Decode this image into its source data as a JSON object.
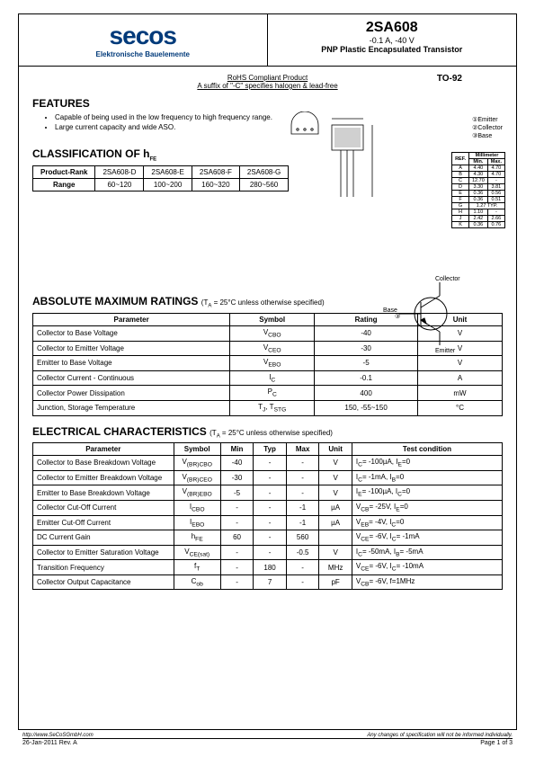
{
  "header": {
    "logo_text": "secos",
    "logo_subtitle": "Elektronische Bauelemente",
    "part_number": "2SA608",
    "rating_line": "-0.1 A, -40 V",
    "description": "PNP Plastic Encapsulated Transistor"
  },
  "rohs": {
    "line1": "RoHS Compliant Product",
    "line2": "A suffix of \"-C\" specifies halogen & lead-free"
  },
  "package_type": "TO-92",
  "features": {
    "title": "FEATURES",
    "items": [
      "Capable of being used in the low frequency to high frequency range.",
      "Large current capacity and wide ASO."
    ]
  },
  "pin_legend": {
    "e": "①Emitter",
    "c": "②Collector",
    "b": "③Base"
  },
  "classification": {
    "title": "CLASSIFICATION OF h",
    "title_sub": "FE",
    "header_label": "Product-Rank",
    "row_label": "Range",
    "cols": [
      "2SA608-D",
      "2SA608-E",
      "2SA608-F",
      "2SA608-G"
    ],
    "ranges": [
      "60~120",
      "100~200",
      "160~320",
      "280~560"
    ]
  },
  "dim_table": {
    "header": [
      "REF.",
      "Min.",
      "Max."
    ],
    "unit_header": "Millimeter",
    "rows": [
      [
        "A",
        "4.40",
        "4.70"
      ],
      [
        "B",
        "4.30",
        "4.70"
      ],
      [
        "C",
        "12.70",
        "-"
      ],
      [
        "D",
        "3.30",
        "3.81"
      ],
      [
        "E",
        "0.36",
        "0.56"
      ],
      [
        "F",
        "0.36",
        "0.51"
      ],
      [
        "G",
        "1.27 TYP.",
        ""
      ],
      [
        "H",
        "1.10",
        "-"
      ],
      [
        "J",
        "2.42",
        "2.66"
      ],
      [
        "K",
        "0.36",
        "0.76"
      ]
    ]
  },
  "schematic_labels": {
    "collector": "Collector",
    "base": "Base",
    "emitter": "Emitter"
  },
  "max_ratings": {
    "title": "ABSOLUTE MAXIMUM RATINGS",
    "condition": "(T",
    "condition_sub": "A",
    "condition_rest": " = 25°C unless otherwise specified)",
    "headers": [
      "Parameter",
      "Symbol",
      "Rating",
      "Unit"
    ],
    "rows": [
      [
        "Collector to Base Voltage",
        "V<sub>CBO</sub>",
        "-40",
        "V"
      ],
      [
        "Collector to Emitter Voltage",
        "V<sub>CEO</sub>",
        "-30",
        "V"
      ],
      [
        "Emitter to Base Voltage",
        "V<sub>EBO</sub>",
        "-5",
        "V"
      ],
      [
        "Collector Current - Continuous",
        "I<sub>C</sub>",
        "-0.1",
        "A"
      ],
      [
        "Collector Power Dissipation",
        "P<sub>C</sub>",
        "400",
        "mW"
      ],
      [
        "Junction, Storage Temperature",
        "T<sub>J</sub>, T<sub>STG</sub>",
        "150, -55~150",
        "°C"
      ]
    ]
  },
  "elec_char": {
    "title": "ELECTRICAL CHARACTERISTICS",
    "condition": "(T",
    "condition_sub": "A",
    "condition_rest": " = 25°C unless otherwise specified)",
    "headers": [
      "Parameter",
      "Symbol",
      "Min",
      "Typ",
      "Max",
      "Unit",
      "Test condition"
    ],
    "rows": [
      [
        "Collector to Base Breakdown Voltage",
        "V<sub>(BR)CBO</sub>",
        "-40",
        "-",
        "-",
        "V",
        "I<sub>C</sub>= -100µA, I<sub>E</sub>=0"
      ],
      [
        "Collector to Emitter Breakdown Voltage",
        "V<sub>(BR)CEO</sub>",
        "-30",
        "-",
        "-",
        "V",
        "I<sub>C</sub>= -1mA, I<sub>B</sub>=0"
      ],
      [
        "Emitter to Base Breakdown Voltage",
        "V<sub>(BR)EBO</sub>",
        "-5",
        "-",
        "-",
        "V",
        "I<sub>E</sub>= -100µA, I<sub>C</sub>=0"
      ],
      [
        "Collector Cut-Off Current",
        "I<sub>CBO</sub>",
        "-",
        "-",
        "-1",
        "µA",
        "V<sub>CB</sub>= -25V, I<sub>E</sub>=0"
      ],
      [
        "Emitter Cut-Off Current",
        "I<sub>EBO</sub>",
        "-",
        "-",
        "-1",
        "µA",
        "V<sub>EB</sub>= -4V, I<sub>C</sub>=0"
      ],
      [
        "DC Current Gain",
        "h<sub>FE</sub>",
        "60",
        "-",
        "560",
        "",
        "V<sub>CE</sub>= -6V, I<sub>C</sub>= -1mA"
      ],
      [
        "Collector to Emitter Saturation Voltage",
        "V<sub>CE(sat)</sub>",
        "-",
        "-",
        "-0.5",
        "V",
        "I<sub>C</sub>= -50mA, I<sub>B</sub>= -5mA"
      ],
      [
        "Transition Frequency",
        "f<sub>T</sub>",
        "-",
        "180",
        "-",
        "MHz",
        "V<sub>CE</sub>= -6V, I<sub>C</sub>= -10mA"
      ],
      [
        "Collector Output Capacitance",
        "C<sub>ob</sub>",
        "-",
        "7",
        "-",
        "pF",
        "V<sub>CB</sub>= -6V, f=1MHz"
      ]
    ]
  },
  "footer": {
    "url": "http://www.SeCoSGmbH.com",
    "disclaimer": "Any changes of specification will not be informed individually.",
    "date": "26-Jan-2011 Rev. A",
    "page": "Page 1 of 3"
  },
  "colors": {
    "brand_blue": "#003a7a",
    "border": "#000000",
    "text": "#000000"
  }
}
